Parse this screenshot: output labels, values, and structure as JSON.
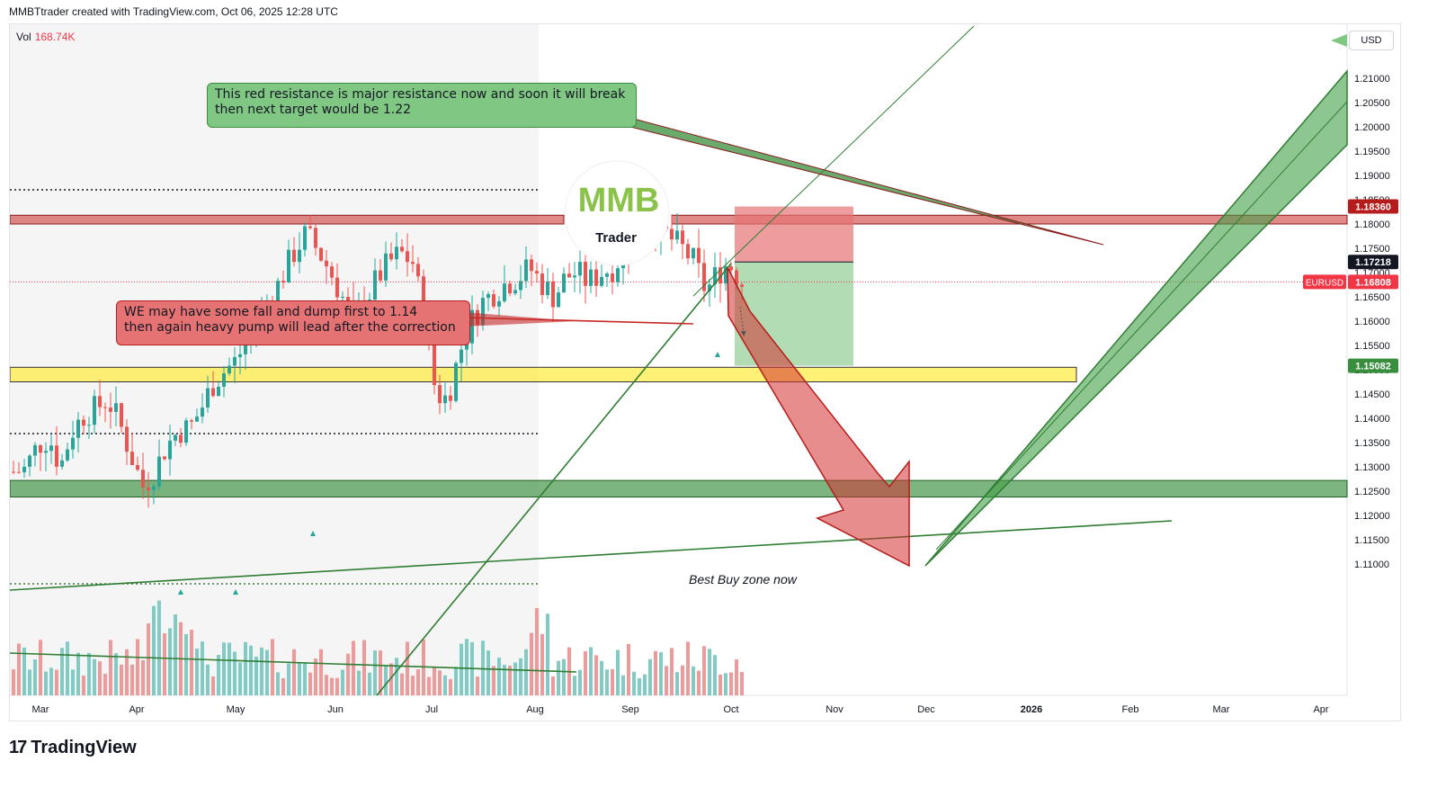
{
  "header": {
    "text": "MMBTtrader created with TradingView.com, Oct 06, 2025 12:28 UTC"
  },
  "volume": {
    "label": "Vol",
    "value": "168.74K"
  },
  "currency": "USD",
  "notes": {
    "green": {
      "line1": "This red resistance is major resistance now and soon it will break",
      "line2": "then next target would be 1.22"
    },
    "red": {
      "line1": "WE may have some fall and dump first to 1.14",
      "line2": "then again heavy pump will lead after the correction"
    },
    "buy_zone": "Best Buy zone now"
  },
  "logo": {
    "top": "MMB",
    "bottom": "Trader"
  },
  "footer": {
    "brand": "TradingView",
    "mark": "17"
  },
  "price_tags": [
    {
      "label": "",
      "value": "1.18360",
      "bg": "#b71c1c",
      "fg": "#ffffff",
      "price": 1.1836
    },
    {
      "label": "",
      "value": "1.17218",
      "bg": "#131722",
      "fg": "#ffffff",
      "price": 1.17218
    },
    {
      "label": "EURUSD",
      "value": "1.16808",
      "bg": "#f23645",
      "fg": "#ffffff",
      "price": 1.16808
    },
    {
      "label": "",
      "value": "1.15082",
      "bg": "#388e3c",
      "fg": "#ffffff",
      "price": 1.15082
    }
  ],
  "colors": {
    "up": "#26a69a",
    "down": "#ef5350",
    "resistance": "#c62828",
    "support": "#388e3c",
    "zone": "#ffeb3b"
  },
  "chart_data": {
    "type": "candlestick",
    "symbol": "EURUSD",
    "y_ticks": [
      "1.21000",
      "1.20500",
      "1.20000",
      "1.19500",
      "1.19000",
      "1.18500",
      "1.18000",
      "1.17500",
      "1.17000",
      "1.16500",
      "1.16000",
      "1.15500",
      "1.15000",
      "1.14500",
      "1.14000",
      "1.13500",
      "1.13000",
      "1.12500",
      "1.12000",
      "1.11500",
      "1.11000"
    ],
    "x_ticks": [
      "Mar",
      "Apr",
      "May",
      "Jun",
      "Jul",
      "Aug",
      "Sep",
      "Oct",
      "Nov",
      "Dec",
      "2026",
      "Feb",
      "Mar",
      "Apr"
    ],
    "ylim": [
      1.1085,
      1.214
    ],
    "zones": [
      {
        "name": "resistance",
        "low": 1.18,
        "high": 1.1818
      },
      {
        "name": "support",
        "low": 1.1475,
        "high": 1.1505
      },
      {
        "name": "buy",
        "low": 1.1238,
        "high": 1.1272
      }
    ],
    "position": {
      "entry": 1.17218,
      "stop": 1.1836,
      "target": 1.15082
    },
    "candle_path": [
      [
        0,
        1.129
      ],
      [
        6,
        1.1295
      ],
      [
        13,
        1.1345
      ],
      [
        19,
        1.136
      ],
      [
        25,
        1.13
      ],
      [
        31,
        1.1372
      ],
      [
        38,
        1.141
      ],
      [
        44,
        1.142
      ],
      [
        50,
        1.144
      ],
      [
        56,
        1.1395
      ],
      [
        63,
        1.132
      ],
      [
        69,
        1.126
      ],
      [
        75,
        1.129
      ],
      [
        81,
        1.134
      ],
      [
        88,
        1.1375
      ],
      [
        94,
        1.138
      ],
      [
        100,
        1.142
      ],
      [
        106,
        1.147
      ],
      [
        113,
        1.15
      ],
      [
        119,
        1.152
      ],
      [
        125,
        1.157
      ],
      [
        131,
        1.162
      ],
      [
        138,
        1.165
      ],
      [
        144,
        1.17
      ],
      [
        150,
        1.1745
      ],
      [
        156,
        1.178
      ],
      [
        163,
        1.174
      ],
      [
        169,
        1.17
      ],
      [
        175,
        1.165
      ],
      [
        181,
        1.161
      ],
      [
        188,
        1.1645
      ],
      [
        194,
        1.169
      ],
      [
        200,
        1.172
      ],
      [
        206,
        1.174
      ],
      [
        213,
        1.172
      ],
      [
        219,
        1.16
      ],
      [
        225,
        1.145
      ],
      [
        231,
        1.144
      ],
      [
        238,
        1.154
      ],
      [
        244,
        1.16
      ],
      [
        250,
        1.164
      ],
      [
        256,
        1.166
      ],
      [
        263,
        1.168
      ],
      [
        269,
        1.169
      ],
      [
        275,
        1.171
      ],
      [
        281,
        1.168
      ],
      [
        288,
        1.165
      ],
      [
        294,
        1.169
      ],
      [
        300,
        1.17
      ],
      [
        306,
        1.168
      ],
      [
        313,
        1.17
      ],
      [
        319,
        1.171
      ],
      [
        325,
        1.174
      ],
      [
        331,
        1.176
      ],
      [
        338,
        1.182
      ],
      [
        344,
        1.179
      ],
      [
        350,
        1.177
      ],
      [
        356,
        1.175
      ],
      [
        363,
        1.172
      ],
      [
        369,
        1.166
      ],
      [
        375,
        1.17
      ],
      [
        381,
        1.172
      ],
      [
        388,
        1.168
      ]
    ]
  }
}
